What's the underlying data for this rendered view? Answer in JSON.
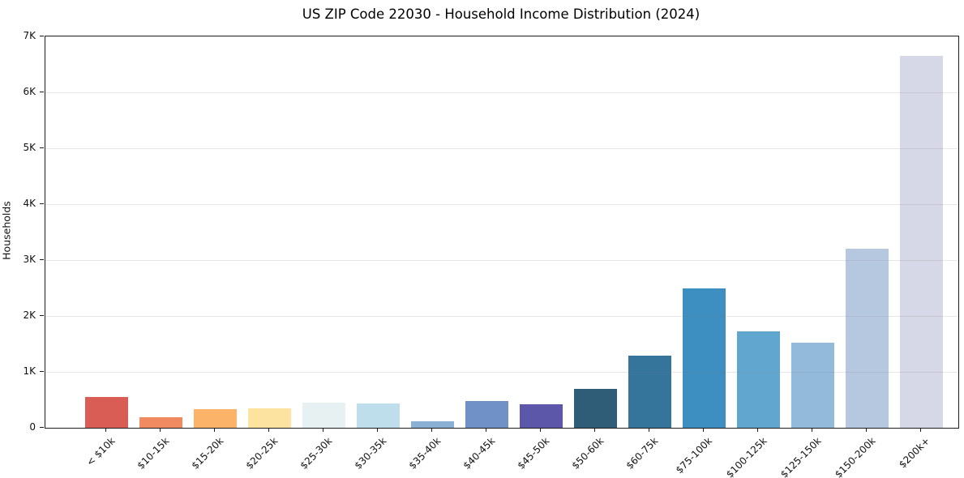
{
  "chart_data": {
    "type": "bar",
    "title": "US ZIP Code 22030 - Household Income Distribution (2024)",
    "xlabel": "",
    "ylabel": "Households",
    "ylim": [
      0,
      7000
    ],
    "grid": "horizontal-light",
    "legend": "none",
    "ytick_values": [
      0,
      1000,
      2000,
      3000,
      4000,
      5000,
      6000,
      7000
    ],
    "ytick_labels": [
      "0",
      "1K",
      "2K",
      "3K",
      "4K",
      "5K",
      "6K",
      "7K"
    ],
    "categories": [
      "< $10k",
      "$10-15k",
      "$15-20k",
      "$20-25k",
      "$25-30k",
      "$30-35k",
      "$35-40k",
      "$40-45k",
      "$45-50k",
      "$50-60k",
      "$60-75k",
      "$75-100k",
      "$100-125k",
      "$125-150k",
      "$150-200k",
      "$200k+"
    ],
    "values": [
      550,
      195,
      330,
      350,
      450,
      430,
      115,
      475,
      420,
      700,
      1290,
      2500,
      1730,
      1520,
      3200,
      6650
    ],
    "bar_colors": [
      "#d95d55",
      "#f08a61",
      "#fab368",
      "#fde3a0",
      "#e7f1f1",
      "#bddeea",
      "#8ab1d4",
      "#7091c7",
      "#5c57a8",
      "#2f5d77",
      "#35759b",
      "#3d8ec1",
      "#61a6ce",
      "#93badb",
      "#b6c8e0",
      "#d7d8e7"
    ],
    "axis_color": "#1c1c1c",
    "background_color": "#ffffff"
  }
}
